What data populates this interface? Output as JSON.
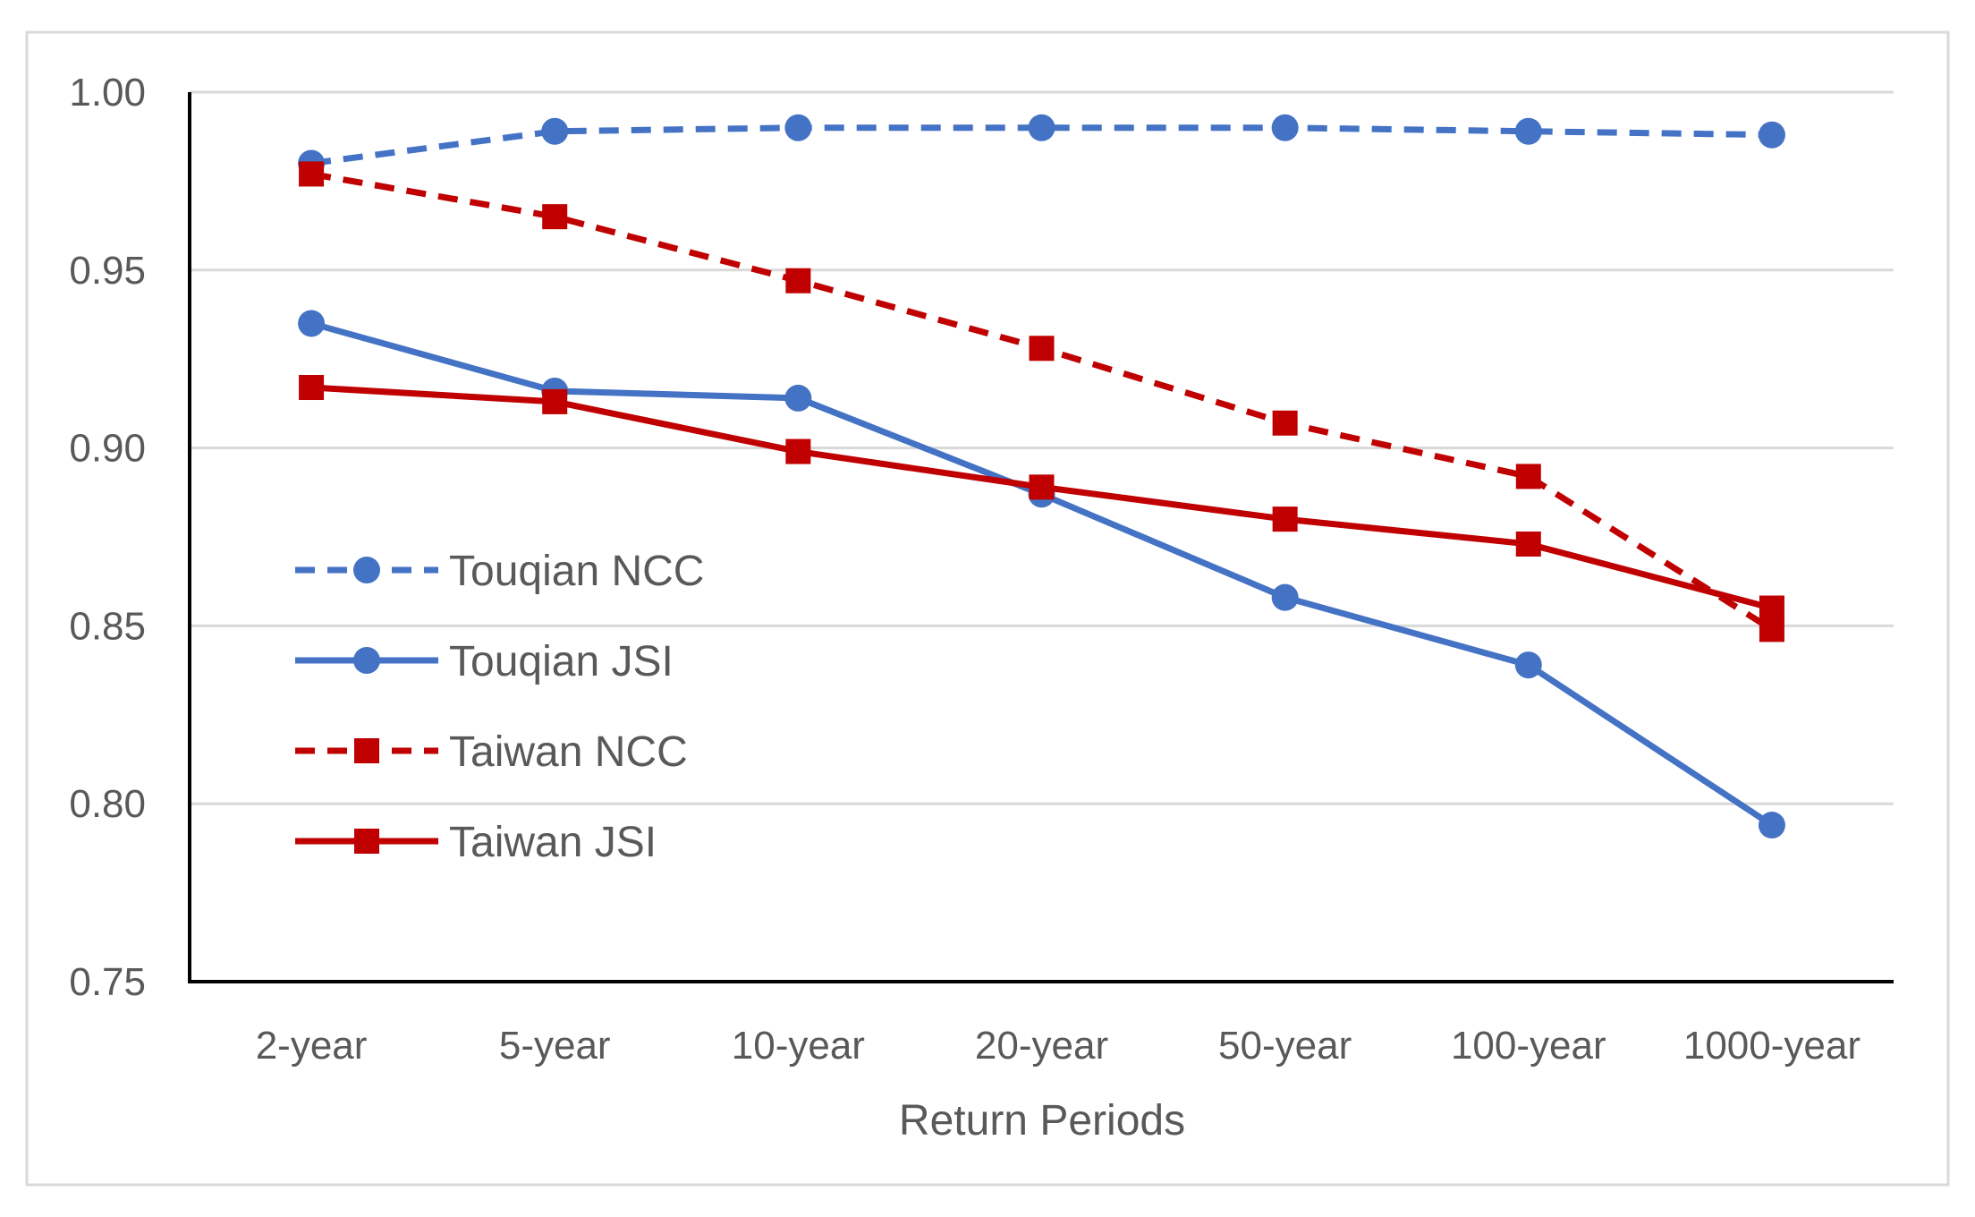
{
  "chart_data": {
    "type": "line",
    "title": "",
    "xlabel": "Return Periods",
    "ylabel": "",
    "categories": [
      "2-year",
      "5-year",
      "10-year",
      "20-year",
      "50-year",
      "100-year",
      "1000-year"
    ],
    "ylim": [
      0.75,
      1.0
    ],
    "yticks": [
      "0.75",
      "0.80",
      "0.85",
      "0.90",
      "0.95",
      "1.00"
    ],
    "grid": true,
    "legend_position": "left-middle",
    "series": [
      {
        "name": "Touqian NCC",
        "color": "#4472c4",
        "dash": "dashed",
        "marker": "circle",
        "values": [
          0.98,
          0.989,
          0.99,
          0.99,
          0.99,
          0.989,
          0.988
        ]
      },
      {
        "name": "Touqian JSI",
        "color": "#4472c4",
        "dash": "solid",
        "marker": "circle",
        "values": [
          0.935,
          0.916,
          0.914,
          0.887,
          0.858,
          0.839,
          0.794
        ]
      },
      {
        "name": "Taiwan NCC",
        "color": "#c00000",
        "dash": "dashed",
        "marker": "square",
        "values": [
          0.977,
          0.965,
          0.947,
          0.928,
          0.907,
          0.892,
          0.849
        ]
      },
      {
        "name": "Taiwan JSI",
        "color": "#c00000",
        "dash": "solid",
        "marker": "square",
        "values": [
          0.917,
          0.913,
          0.899,
          0.889,
          0.88,
          0.873,
          0.855
        ]
      }
    ]
  }
}
